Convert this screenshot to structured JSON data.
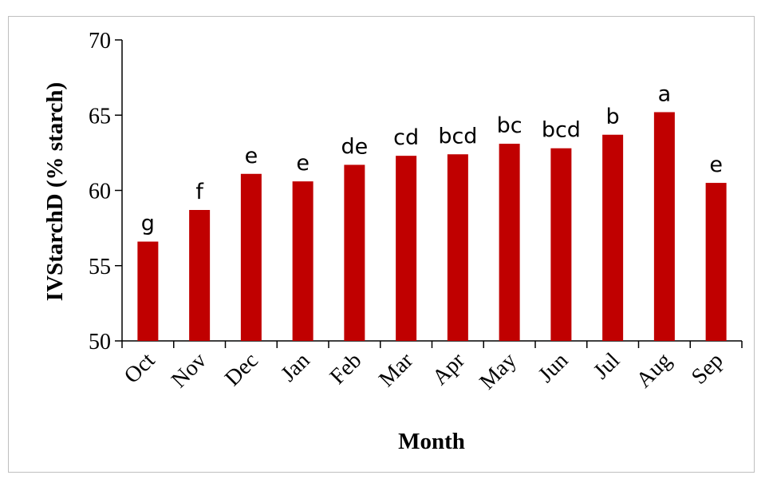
{
  "chart_data": {
    "type": "bar",
    "categories": [
      "Oct",
      "Nov",
      "Dec",
      "Jan",
      "Feb",
      "Mar",
      "Apr",
      "May",
      "Jun",
      "Jul",
      "Aug",
      "Sep"
    ],
    "values": [
      56.6,
      58.7,
      61.1,
      60.6,
      61.7,
      62.3,
      62.4,
      63.1,
      62.8,
      63.7,
      65.2,
      60.5
    ],
    "labels": [
      "g",
      "f",
      "e",
      "e",
      "de",
      "cd",
      "bcd",
      "bc",
      "bcd",
      "b",
      "a",
      "e"
    ],
    "title": "",
    "xlabel": "Month",
    "ylabel": "IVStarchD (% starch)",
    "ylim": [
      50,
      70
    ],
    "yticks": [
      50,
      55,
      60,
      65,
      70
    ],
    "bar_color": "#c00000",
    "grid": false,
    "legend": "none"
  }
}
